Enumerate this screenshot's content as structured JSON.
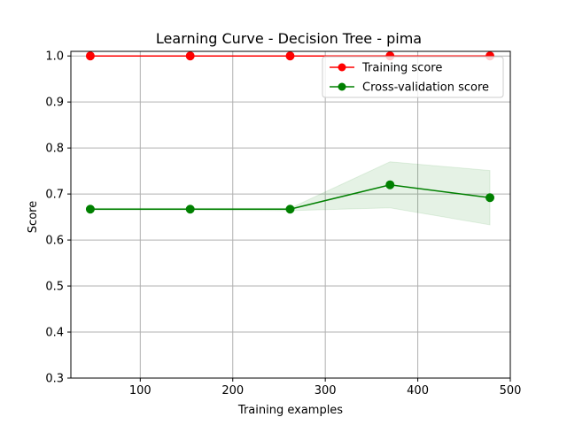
{
  "chart_data": {
    "type": "line",
    "title": "Learning Curve - Decision Tree - pima",
    "xlabel": "Training examples",
    "ylabel": "Score",
    "xlim": [
      25,
      500
    ],
    "ylim": [
      0.3,
      1.01
    ],
    "x_ticks": [
      100,
      200,
      300,
      400,
      500
    ],
    "y_ticks": [
      0.3,
      0.4,
      0.5,
      0.6,
      0.7,
      0.8,
      0.9,
      1.0
    ],
    "x_tick_labels": [
      "100",
      "200",
      "300",
      "400",
      "500"
    ],
    "y_tick_labels": [
      "0.3",
      "0.4",
      "0.5",
      "0.6",
      "0.7",
      "0.8",
      "0.9",
      "1.0"
    ],
    "grid": true,
    "legend_position": "top-right",
    "x": [
      46,
      154,
      262,
      370,
      478
    ],
    "series": [
      {
        "name": "Training score",
        "color": "#ff0000",
        "values": [
          1.0,
          1.0,
          1.0,
          1.0,
          1.0
        ],
        "band_lower": [
          1.0,
          1.0,
          1.0,
          1.0,
          1.0
        ],
        "band_upper": [
          1.0,
          1.0,
          1.0,
          1.0,
          1.0
        ]
      },
      {
        "name": "Cross-validation score",
        "color": "#008000",
        "values": [
          0.667,
          0.667,
          0.667,
          0.72,
          0.692
        ],
        "band_lower": [
          0.665,
          0.665,
          0.664,
          0.67,
          0.633
        ],
        "band_upper": [
          0.669,
          0.669,
          0.669,
          0.77,
          0.751
        ]
      }
    ]
  }
}
